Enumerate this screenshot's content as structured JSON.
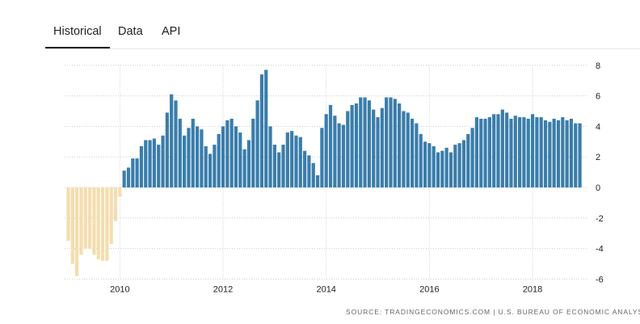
{
  "tabs": [
    {
      "label": "Historical",
      "active": true
    },
    {
      "label": "Data",
      "active": false
    },
    {
      "label": "API",
      "active": false
    }
  ],
  "source": "SOURCE: TRADINGECONOMICS.COM | U.S. BUREAU OF ECONOMIC ANALYSIS",
  "colors": {
    "positive": "#3a7dab",
    "negative": "#f4ddae",
    "grid": "#cccccc"
  },
  "chart_data": {
    "type": "bar",
    "title": "",
    "xlabel": "",
    "ylabel": "",
    "ylim": [
      -6,
      8
    ],
    "yticks": [
      8,
      6,
      4,
      2,
      0,
      -2,
      -4,
      -6
    ],
    "xticks": [
      "2010",
      "2012",
      "2014",
      "2016",
      "2018"
    ],
    "grid": true,
    "y_axis_position": "right",
    "x_start": "2009-01",
    "frequency": "monthly",
    "values": [
      -3.5,
      -5.0,
      -5.8,
      -4.4,
      -4.0,
      -4.0,
      -4.4,
      -4.7,
      -4.8,
      -4.8,
      -3.7,
      -2.2,
      -0.6,
      1.1,
      1.3,
      1.9,
      1.9,
      2.7,
      3.1,
      3.1,
      3.2,
      2.8,
      3.4,
      4.9,
      6.1,
      5.7,
      4.5,
      3.4,
      3.9,
      4.5,
      4.0,
      3.8,
      2.7,
      2.2,
      2.8,
      3.5,
      4.0,
      4.4,
      4.5,
      4.0,
      3.6,
      2.5,
      3.1,
      4.5,
      5.7,
      7.4,
      7.7,
      4.0,
      2.8,
      2.3,
      2.8,
      3.6,
      3.7,
      3.4,
      3.3,
      2.4,
      2.1,
      1.6,
      0.8,
      3.9,
      4.8,
      5.4,
      4.7,
      4.2,
      4.1,
      5.0,
      5.4,
      5.5,
      5.9,
      5.9,
      5.7,
      5.1,
      4.6,
      5.2,
      5.9,
      5.9,
      5.8,
      5.5,
      5.0,
      4.9,
      4.5,
      4.2,
      3.5,
      3.0,
      2.9,
      2.7,
      2.3,
      2.4,
      2.6,
      2.3,
      2.8,
      2.9,
      3.1,
      3.5,
      3.9,
      4.6,
      4.5,
      4.5,
      4.6,
      4.8,
      4.8,
      5.1,
      4.9,
      4.5,
      4.7,
      4.6,
      4.6,
      4.5,
      4.8,
      4.6,
      4.6,
      4.4,
      4.3,
      4.5,
      4.4,
      4.6,
      4.4,
      4.5,
      4.2,
      4.2
    ]
  }
}
